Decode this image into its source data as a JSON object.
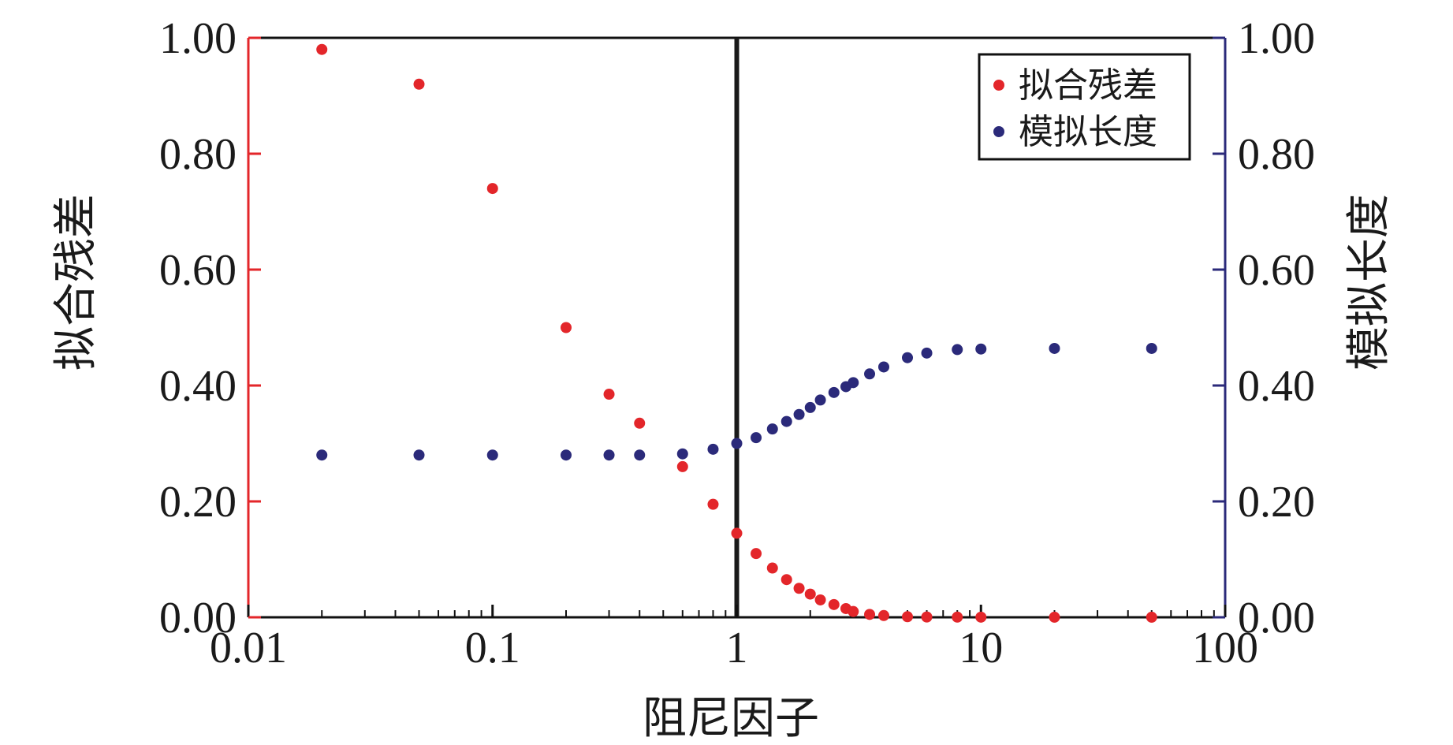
{
  "chart_data": {
    "type": "scatter",
    "xlabel": "阻尼因子",
    "ylabel_left": "拟合残差",
    "ylabel_right": "模拟长度",
    "x_scale": "log",
    "xlim": [
      0.01,
      100
    ],
    "ylim": [
      0,
      1
    ],
    "x_ticks": [
      "0.01",
      "0.1",
      "1",
      "10",
      "100"
    ],
    "y_ticks": [
      "0.00",
      "0.20",
      "0.40",
      "0.60",
      "0.80",
      "1.00"
    ],
    "vertical_line_x": 1,
    "legend_position": "top-right",
    "grid": false,
    "colors": {
      "left_axis": "#e3262a",
      "right_axis": "#2b2a7a",
      "frame": "#111111",
      "vline": "#1a1a1a"
    },
    "series": [
      {
        "name": "拟合残差",
        "axis": "left",
        "color": "#e3262a",
        "x": [
          0.02,
          0.05,
          0.1,
          0.2,
          0.3,
          0.4,
          0.6,
          0.8,
          1.0,
          1.2,
          1.4,
          1.6,
          1.8,
          2.0,
          2.2,
          2.5,
          2.8,
          3.0,
          3.5,
          4.0,
          5.0,
          6.0,
          8.0,
          10.0,
          20.0,
          50.0
        ],
        "y": [
          0.98,
          0.92,
          0.74,
          0.5,
          0.385,
          0.335,
          0.26,
          0.195,
          0.145,
          0.11,
          0.085,
          0.065,
          0.05,
          0.04,
          0.03,
          0.022,
          0.015,
          0.01,
          0.005,
          0.003,
          0.001,
          0.0005,
          0.0003,
          0.0002,
          0.0001,
          0.0001
        ]
      },
      {
        "name": "模拟长度",
        "axis": "right",
        "color": "#2b2a7a",
        "x": [
          0.02,
          0.05,
          0.1,
          0.2,
          0.3,
          0.4,
          0.6,
          0.8,
          1.0,
          1.2,
          1.4,
          1.6,
          1.8,
          2.0,
          2.2,
          2.5,
          2.8,
          3.0,
          3.5,
          4.0,
          5.0,
          6.0,
          8.0,
          10.0,
          20.0,
          50.0
        ],
        "y": [
          0.28,
          0.28,
          0.28,
          0.28,
          0.28,
          0.28,
          0.282,
          0.29,
          0.3,
          0.31,
          0.325,
          0.338,
          0.35,
          0.362,
          0.375,
          0.388,
          0.398,
          0.405,
          0.42,
          0.432,
          0.448,
          0.456,
          0.462,
          0.463,
          0.464,
          0.464
        ]
      }
    ]
  }
}
